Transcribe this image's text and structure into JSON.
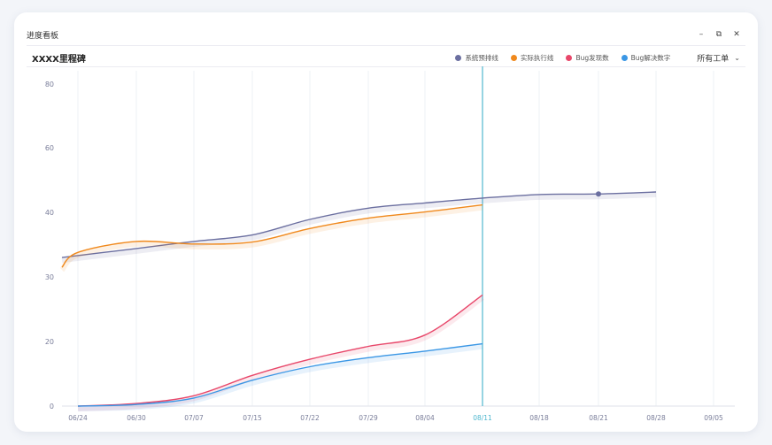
{
  "window": {
    "title": "进度看板",
    "controls": {
      "minimize": "–",
      "restore": "⧉",
      "close": "✕"
    }
  },
  "header": {
    "title": "XXXX里程碑",
    "filter_label": "所有工单",
    "filter_icon": "chevron-down-icon"
  },
  "colors": {
    "plan": "#6b6fa0",
    "actual": "#f0891d",
    "bug_found": "#e8476a",
    "bug_resolved": "#3b97e5",
    "marker": "#4fb7cf",
    "grid": "#eef0f5",
    "axis_text": "#7a7e9a"
  },
  "chart_data": {
    "type": "line",
    "title": "",
    "xlabel": "",
    "ylabel": "",
    "ylim": [
      0,
      80
    ],
    "yticks": [
      0,
      20,
      30,
      40,
      60,
      80
    ],
    "x_ticks": [
      "06/24",
      "06/30",
      "07/07",
      "07/15",
      "07/22",
      "07/29",
      "08/04",
      "08/11",
      "08/18",
      "08/21",
      "08/28",
      "09/05"
    ],
    "highlight_x": "08/11",
    "grid": true,
    "legend_position": "top-right",
    "series": [
      {
        "name": "系统预排线",
        "color_key": "plan",
        "points": [
          [
            "06/20",
            33
          ],
          [
            "06/30",
            34.4
          ],
          [
            "07/07",
            35.5
          ],
          [
            "07/15",
            36.5
          ],
          [
            "07/22",
            38.9
          ],
          [
            "07/29",
            41.3
          ],
          [
            "08/04",
            42.9
          ],
          [
            "08/11",
            44.4
          ],
          [
            "08/18",
            45.5
          ],
          [
            "08/21",
            45.7
          ],
          [
            "08/28",
            46.3
          ]
        ],
        "end_marker": true
      },
      {
        "name": "实际执行线",
        "color_key": "actual",
        "points": [
          [
            "06/20",
            31.5
          ],
          [
            "06/24",
            33.8
          ],
          [
            "06/30",
            35.5
          ],
          [
            "07/07",
            35.1
          ],
          [
            "07/15",
            35.4
          ],
          [
            "07/22",
            37.5
          ],
          [
            "07/29",
            39.1
          ],
          [
            "08/04",
            40.1
          ],
          [
            "08/11",
            42.3
          ]
        ]
      },
      {
        "name": "Bug发现数",
        "color_key": "bug_found",
        "points": [
          [
            "06/24",
            0
          ],
          [
            "06/30",
            0.8
          ],
          [
            "07/07",
            3.2
          ],
          [
            "07/15",
            9.5
          ],
          [
            "07/22",
            14.5
          ],
          [
            "07/29",
            18.5
          ],
          [
            "08/04",
            21
          ],
          [
            "08/11",
            27.2
          ]
        ]
      },
      {
        "name": "Bug解决数字",
        "color_key": "bug_resolved",
        "points": [
          [
            "06/24",
            0
          ],
          [
            "06/30",
            0.5
          ],
          [
            "07/07",
            2.5
          ],
          [
            "07/15",
            8
          ],
          [
            "07/22",
            12.2
          ],
          [
            "07/29",
            15
          ],
          [
            "08/04",
            17
          ],
          [
            "08/11",
            19.3
          ]
        ]
      }
    ]
  }
}
